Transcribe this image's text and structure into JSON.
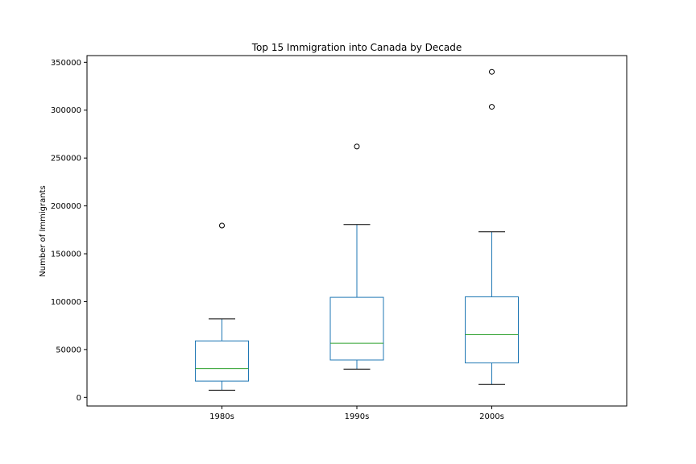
{
  "chart_data": {
    "type": "box",
    "title": "Top 15 Immigration into Canada by Decade",
    "xlabel": "",
    "ylabel": "Number of Immigrants",
    "categories": [
      "1980s",
      "1990s",
      "2000s"
    ],
    "boxes": [
      {
        "category": "1980s",
        "whisker_low": 7500,
        "q1": 17000,
        "median": 30000,
        "q3": 59000,
        "whisker_high": 82000,
        "outliers": [
          179500
        ]
      },
      {
        "category": "1990s",
        "whisker_low": 29500,
        "q1": 39000,
        "median": 56500,
        "q3": 104500,
        "whisker_high": 180500,
        "outliers": [
          262000
        ]
      },
      {
        "category": "2000s",
        "whisker_low": 13500,
        "q1": 36000,
        "median": 65500,
        "q3": 105000,
        "whisker_high": 173000,
        "outliers": [
          303500,
          340000
        ]
      }
    ],
    "y_ticks": [
      0,
      50000,
      100000,
      150000,
      200000,
      250000,
      300000,
      350000
    ],
    "ylim": [
      -9000,
      357000
    ],
    "grid": false,
    "colors": {
      "box": "#1f77b4",
      "median": "#2ca02c",
      "whisker": "#1f77b4",
      "cap": "#000000",
      "outlier": "#000000"
    }
  }
}
